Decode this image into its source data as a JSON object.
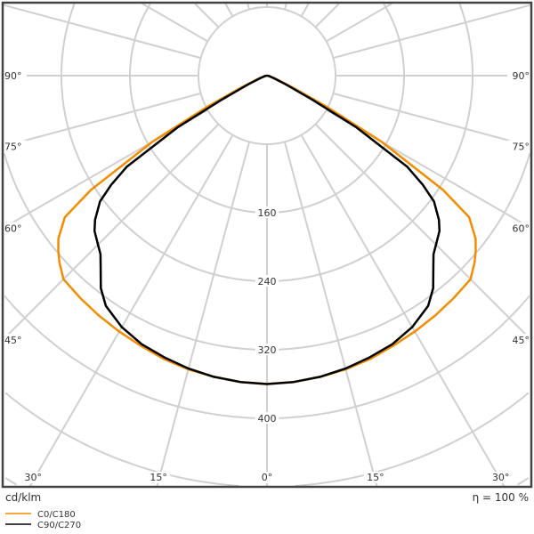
{
  "chart_data": {
    "type": "polar",
    "unit_label": "cd/klm",
    "efficiency_label": "η = 100 %",
    "radial_ticks": [
      80,
      160,
      240,
      320,
      400,
      480,
      560,
      640,
      720,
      800
    ],
    "radial_tick_labels": [
      "160",
      "240",
      "320",
      "400"
    ],
    "angle_ticks": [
      0,
      15,
      30,
      45,
      60,
      75,
      90
    ],
    "angle_tick_labels": [
      "0°",
      "15°",
      "30°",
      "45°",
      "60°",
      "75°",
      "90°"
    ],
    "grid": true,
    "legend_position": "bottom-left",
    "series": [
      {
        "name": "C0/C180",
        "color": "#f28c00",
        "angles": [
          0,
          5,
          10,
          15,
          20,
          25,
          30,
          35,
          40,
          45,
          48,
          50,
          52,
          55,
          57,
          60,
          62.5,
          65,
          70,
          80,
          90
        ],
        "values": [
          360,
          359,
          357,
          355,
          352,
          348,
          345,
          342,
          339,
          336,
          326,
          318,
          309,
          288,
          245,
          155,
          78,
          35,
          12,
          3,
          0
        ]
      },
      {
        "name": "C90/C270",
        "color": "#000000",
        "angles": [
          0,
          5,
          10,
          15,
          20,
          25,
          30,
          35,
          38,
          41,
          43,
          45,
          48,
          50,
          53,
          55,
          57,
          60,
          62,
          65,
          70,
          80,
          90
        ],
        "values": [
          360,
          359,
          357,
          354,
          350,
          346,
          339,
          328,
          315,
          296,
          285,
          279,
          271,
          262,
          244,
          222,
          195,
          120,
          60,
          25,
          8,
          2,
          0
        ]
      }
    ]
  }
}
